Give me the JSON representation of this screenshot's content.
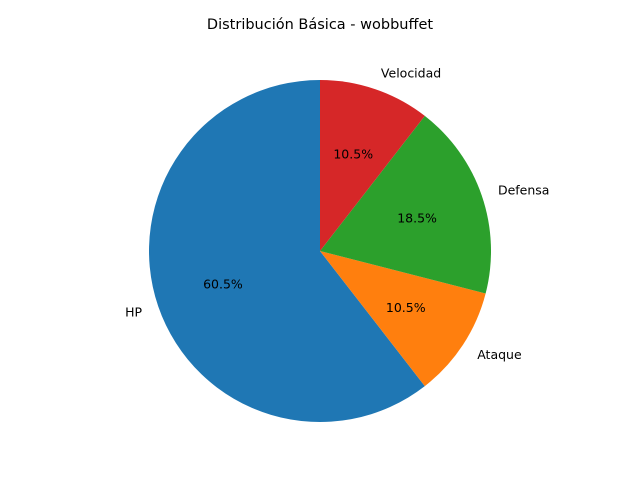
{
  "chart_data": {
    "type": "pie",
    "title": "Distribución Básica - wobbuffet",
    "labels": [
      "HP",
      "Ataque",
      "Defensa",
      "Velocidad"
    ],
    "values": [
      60.5,
      10.5,
      18.5,
      10.5
    ],
    "percent_labels": [
      "60.5%",
      "10.5%",
      "18.5%",
      "10.5%"
    ],
    "colors": [
      "#1f77b4",
      "#ff7f0e",
      "#2ca02c",
      "#d62728"
    ],
    "start_angle_deg": 90,
    "direction": "counterclockwise",
    "legend": "none"
  }
}
